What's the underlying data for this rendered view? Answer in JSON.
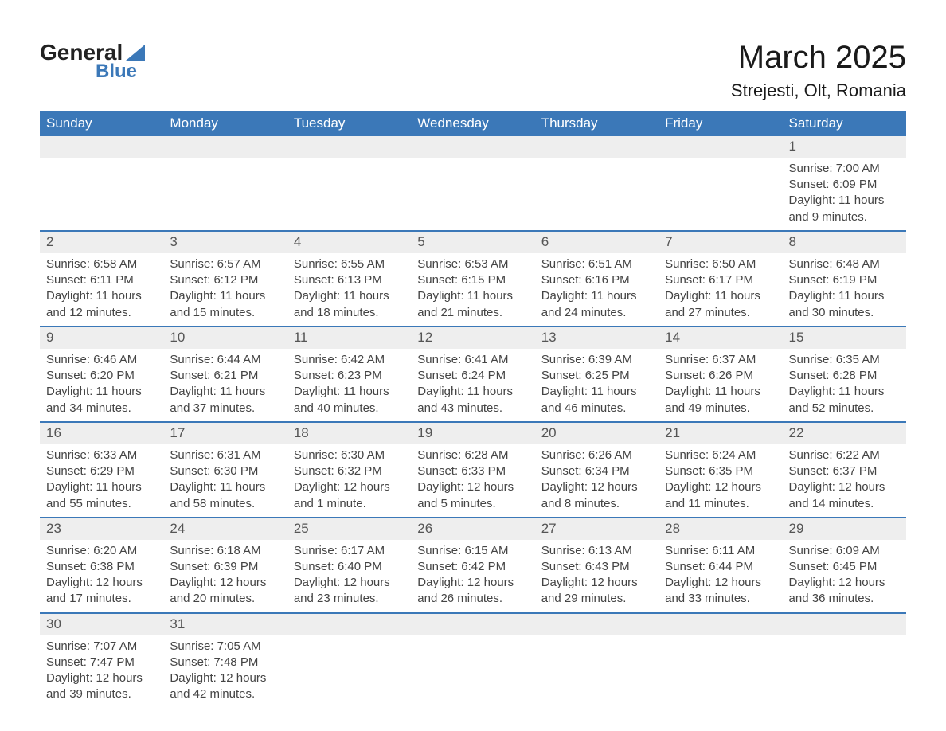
{
  "logo": {
    "word1": "General",
    "word2": "Blue"
  },
  "title": "March 2025",
  "location": "Strejesti, Olt, Romania",
  "colors": {
    "header_bg": "#3b78b8",
    "header_fg": "#ffffff",
    "daynum_bg": "#eeeeee",
    "row_divider": "#3b78b8",
    "body_text": "#444444",
    "background": "#ffffff"
  },
  "typography": {
    "title_fontsize": 40,
    "location_fontsize": 22,
    "header_fontsize": 17,
    "daynum_fontsize": 17,
    "body_fontsize": 15
  },
  "weekdays": [
    "Sunday",
    "Monday",
    "Tuesday",
    "Wednesday",
    "Thursday",
    "Friday",
    "Saturday"
  ],
  "weeks": [
    [
      null,
      null,
      null,
      null,
      null,
      null,
      {
        "d": "1",
        "sr": "Sunrise: 7:00 AM",
        "ss": "Sunset: 6:09 PM",
        "dl1": "Daylight: 11 hours",
        "dl2": "and 9 minutes."
      }
    ],
    [
      {
        "d": "2",
        "sr": "Sunrise: 6:58 AM",
        "ss": "Sunset: 6:11 PM",
        "dl1": "Daylight: 11 hours",
        "dl2": "and 12 minutes."
      },
      {
        "d": "3",
        "sr": "Sunrise: 6:57 AM",
        "ss": "Sunset: 6:12 PM",
        "dl1": "Daylight: 11 hours",
        "dl2": "and 15 minutes."
      },
      {
        "d": "4",
        "sr": "Sunrise: 6:55 AM",
        "ss": "Sunset: 6:13 PM",
        "dl1": "Daylight: 11 hours",
        "dl2": "and 18 minutes."
      },
      {
        "d": "5",
        "sr": "Sunrise: 6:53 AM",
        "ss": "Sunset: 6:15 PM",
        "dl1": "Daylight: 11 hours",
        "dl2": "and 21 minutes."
      },
      {
        "d": "6",
        "sr": "Sunrise: 6:51 AM",
        "ss": "Sunset: 6:16 PM",
        "dl1": "Daylight: 11 hours",
        "dl2": "and 24 minutes."
      },
      {
        "d": "7",
        "sr": "Sunrise: 6:50 AM",
        "ss": "Sunset: 6:17 PM",
        "dl1": "Daylight: 11 hours",
        "dl2": "and 27 minutes."
      },
      {
        "d": "8",
        "sr": "Sunrise: 6:48 AM",
        "ss": "Sunset: 6:19 PM",
        "dl1": "Daylight: 11 hours",
        "dl2": "and 30 minutes."
      }
    ],
    [
      {
        "d": "9",
        "sr": "Sunrise: 6:46 AM",
        "ss": "Sunset: 6:20 PM",
        "dl1": "Daylight: 11 hours",
        "dl2": "and 34 minutes."
      },
      {
        "d": "10",
        "sr": "Sunrise: 6:44 AM",
        "ss": "Sunset: 6:21 PM",
        "dl1": "Daylight: 11 hours",
        "dl2": "and 37 minutes."
      },
      {
        "d": "11",
        "sr": "Sunrise: 6:42 AM",
        "ss": "Sunset: 6:23 PM",
        "dl1": "Daylight: 11 hours",
        "dl2": "and 40 minutes."
      },
      {
        "d": "12",
        "sr": "Sunrise: 6:41 AM",
        "ss": "Sunset: 6:24 PM",
        "dl1": "Daylight: 11 hours",
        "dl2": "and 43 minutes."
      },
      {
        "d": "13",
        "sr": "Sunrise: 6:39 AM",
        "ss": "Sunset: 6:25 PM",
        "dl1": "Daylight: 11 hours",
        "dl2": "and 46 minutes."
      },
      {
        "d": "14",
        "sr": "Sunrise: 6:37 AM",
        "ss": "Sunset: 6:26 PM",
        "dl1": "Daylight: 11 hours",
        "dl2": "and 49 minutes."
      },
      {
        "d": "15",
        "sr": "Sunrise: 6:35 AM",
        "ss": "Sunset: 6:28 PM",
        "dl1": "Daylight: 11 hours",
        "dl2": "and 52 minutes."
      }
    ],
    [
      {
        "d": "16",
        "sr": "Sunrise: 6:33 AM",
        "ss": "Sunset: 6:29 PM",
        "dl1": "Daylight: 11 hours",
        "dl2": "and 55 minutes."
      },
      {
        "d": "17",
        "sr": "Sunrise: 6:31 AM",
        "ss": "Sunset: 6:30 PM",
        "dl1": "Daylight: 11 hours",
        "dl2": "and 58 minutes."
      },
      {
        "d": "18",
        "sr": "Sunrise: 6:30 AM",
        "ss": "Sunset: 6:32 PM",
        "dl1": "Daylight: 12 hours",
        "dl2": "and 1 minute."
      },
      {
        "d": "19",
        "sr": "Sunrise: 6:28 AM",
        "ss": "Sunset: 6:33 PM",
        "dl1": "Daylight: 12 hours",
        "dl2": "and 5 minutes."
      },
      {
        "d": "20",
        "sr": "Sunrise: 6:26 AM",
        "ss": "Sunset: 6:34 PM",
        "dl1": "Daylight: 12 hours",
        "dl2": "and 8 minutes."
      },
      {
        "d": "21",
        "sr": "Sunrise: 6:24 AM",
        "ss": "Sunset: 6:35 PM",
        "dl1": "Daylight: 12 hours",
        "dl2": "and 11 minutes."
      },
      {
        "d": "22",
        "sr": "Sunrise: 6:22 AM",
        "ss": "Sunset: 6:37 PM",
        "dl1": "Daylight: 12 hours",
        "dl2": "and 14 minutes."
      }
    ],
    [
      {
        "d": "23",
        "sr": "Sunrise: 6:20 AM",
        "ss": "Sunset: 6:38 PM",
        "dl1": "Daylight: 12 hours",
        "dl2": "and 17 minutes."
      },
      {
        "d": "24",
        "sr": "Sunrise: 6:18 AM",
        "ss": "Sunset: 6:39 PM",
        "dl1": "Daylight: 12 hours",
        "dl2": "and 20 minutes."
      },
      {
        "d": "25",
        "sr": "Sunrise: 6:17 AM",
        "ss": "Sunset: 6:40 PM",
        "dl1": "Daylight: 12 hours",
        "dl2": "and 23 minutes."
      },
      {
        "d": "26",
        "sr": "Sunrise: 6:15 AM",
        "ss": "Sunset: 6:42 PM",
        "dl1": "Daylight: 12 hours",
        "dl2": "and 26 minutes."
      },
      {
        "d": "27",
        "sr": "Sunrise: 6:13 AM",
        "ss": "Sunset: 6:43 PM",
        "dl1": "Daylight: 12 hours",
        "dl2": "and 29 minutes."
      },
      {
        "d": "28",
        "sr": "Sunrise: 6:11 AM",
        "ss": "Sunset: 6:44 PM",
        "dl1": "Daylight: 12 hours",
        "dl2": "and 33 minutes."
      },
      {
        "d": "29",
        "sr": "Sunrise: 6:09 AM",
        "ss": "Sunset: 6:45 PM",
        "dl1": "Daylight: 12 hours",
        "dl2": "and 36 minutes."
      }
    ],
    [
      {
        "d": "30",
        "sr": "Sunrise: 7:07 AM",
        "ss": "Sunset: 7:47 PM",
        "dl1": "Daylight: 12 hours",
        "dl2": "and 39 minutes."
      },
      {
        "d": "31",
        "sr": "Sunrise: 7:05 AM",
        "ss": "Sunset: 7:48 PM",
        "dl1": "Daylight: 12 hours",
        "dl2": "and 42 minutes."
      },
      null,
      null,
      null,
      null,
      null
    ]
  ]
}
